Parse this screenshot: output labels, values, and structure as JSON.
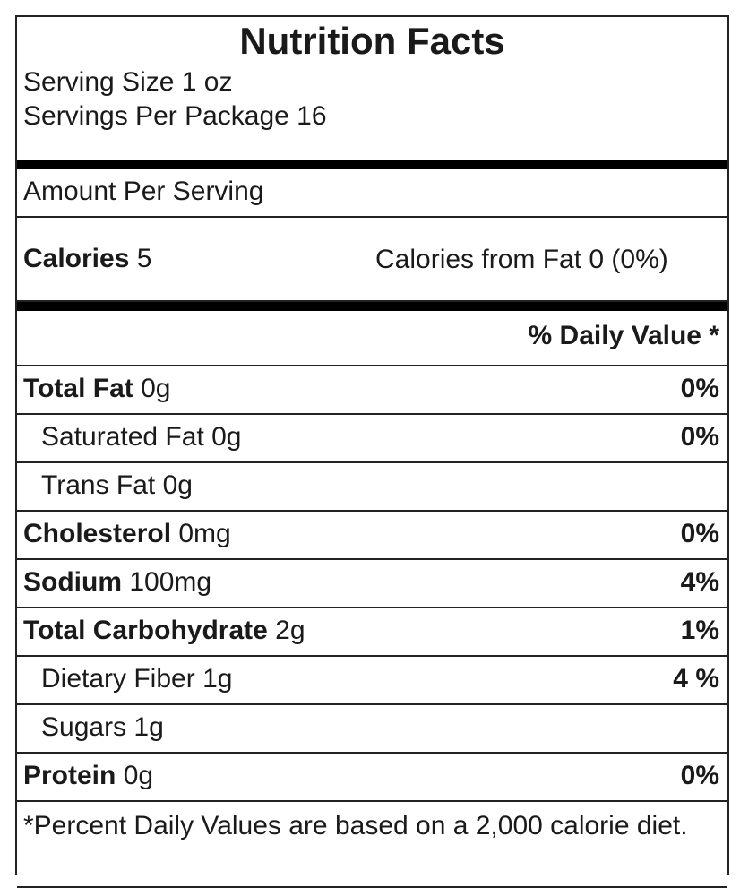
{
  "title": "Nutrition Facts",
  "serving_size": "Serving Size 1 oz",
  "servings_per_package": "Servings Per Package 16",
  "amount_per_serving": "Amount Per Serving",
  "calories": {
    "label": "Calories",
    "value": "5"
  },
  "calories_from_fat": "Calories from Fat 0 (0%)",
  "daily_value_header": "% Daily Value *",
  "nutrients": [
    {
      "name": "Total Fat",
      "amount": "0g",
      "percent": "0%"
    },
    {
      "name": "Saturated Fat",
      "amount": "0g",
      "percent": "0%"
    },
    {
      "name": "Trans Fat",
      "amount": "0g",
      "percent": ""
    },
    {
      "name": "Cholesterol",
      "amount": "0mg",
      "percent": "0%"
    },
    {
      "name": "Sodium",
      "amount": "100mg",
      "percent": "4%"
    },
    {
      "name": "Total Carbohydrate",
      "amount": "2g",
      "percent": "1%"
    },
    {
      "name": "Dietary Fiber",
      "amount": "1g",
      "percent": "4 %"
    },
    {
      "name": "Sugars",
      "amount": "1g",
      "percent": ""
    },
    {
      "name": "Protein",
      "amount": "0g",
      "percent": "0%"
    }
  ],
  "footnote": "*Percent Daily Values are based on a 2,000 calorie diet."
}
